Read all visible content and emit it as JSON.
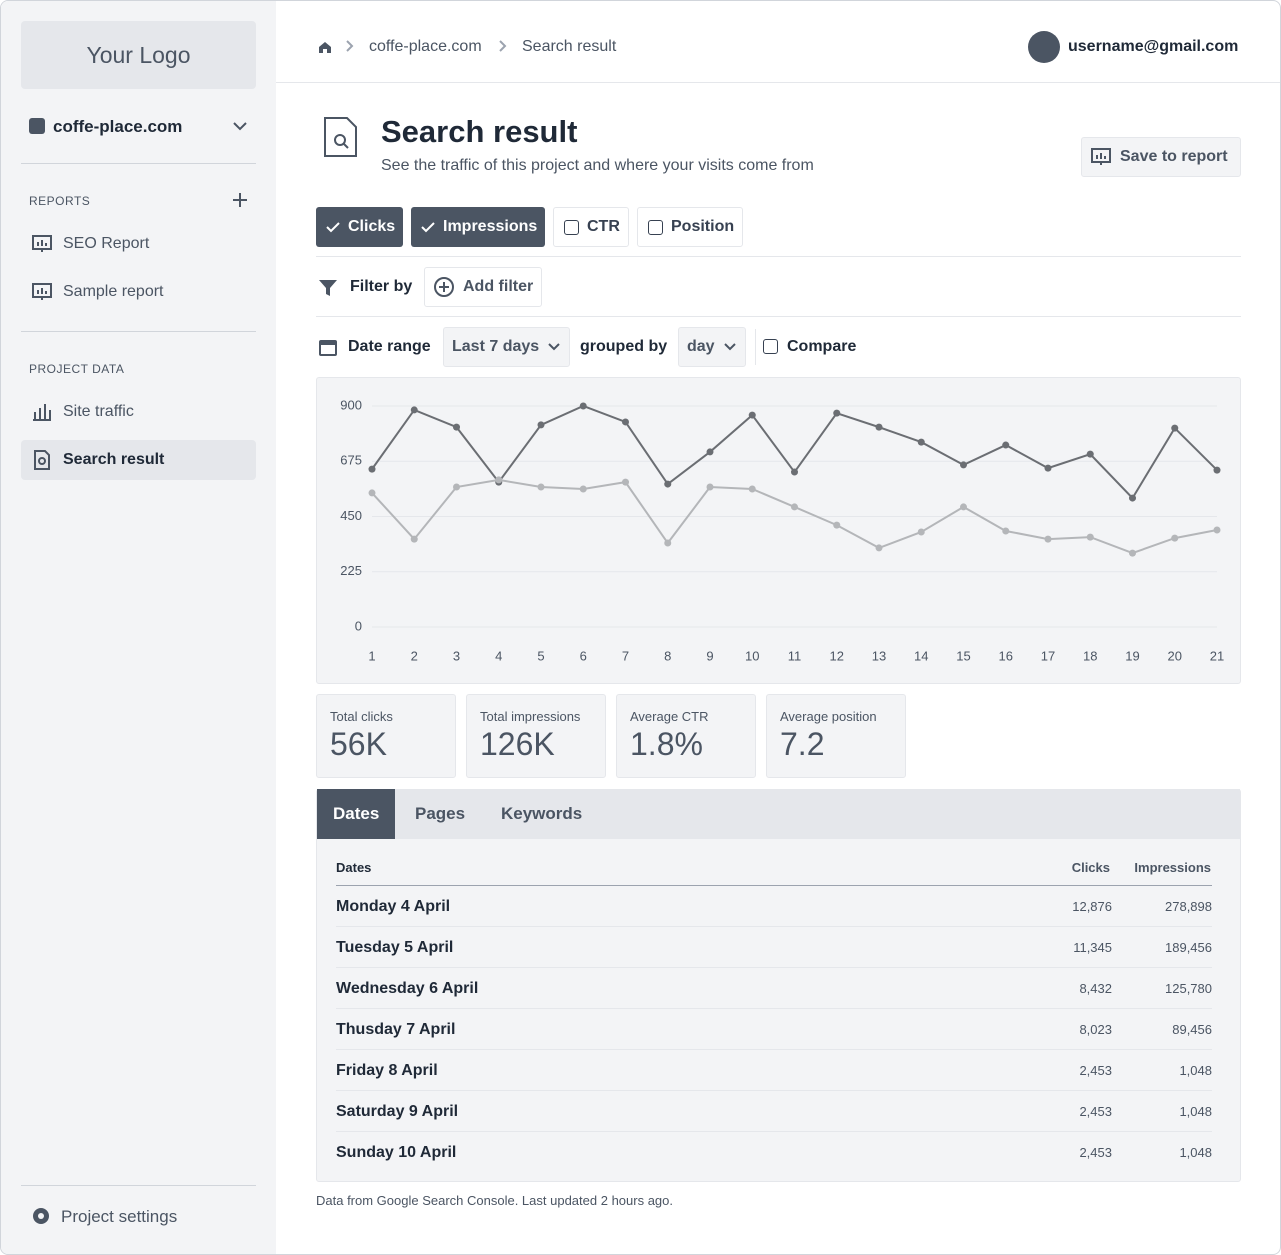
{
  "sidebar": {
    "logo": "Your Logo",
    "project": "coffe-place.com",
    "reports_heading": "REPORTS",
    "reports": [
      "SEO Report",
      "Sample report"
    ],
    "project_data_heading": "PROJECT DATA",
    "project_data": [
      "Site traffic",
      "Search result"
    ],
    "active_item": 1,
    "settings": "Project settings"
  },
  "header": {
    "breadcrumbs": [
      "coffe-place.com",
      "Search result"
    ],
    "user": "username@gmail.com"
  },
  "page": {
    "title": "Search result",
    "subtitle": "See the traffic of this project and where your visits come from",
    "save_button": "Save to report"
  },
  "toggles": [
    {
      "label": "Clicks",
      "checked": true
    },
    {
      "label": "Impressions",
      "checked": true
    },
    {
      "label": "CTR",
      "checked": false
    },
    {
      "label": "Position",
      "checked": false
    }
  ],
  "filter": {
    "label": "Filter by",
    "button": "Add filter"
  },
  "date": {
    "label": "Date range",
    "range": "Last 7 days",
    "grouped_label": "grouped by",
    "grouped": "day",
    "compare": "Compare"
  },
  "chart_data": {
    "type": "line",
    "categories": [
      1,
      2,
      3,
      4,
      5,
      6,
      7,
      8,
      9,
      10,
      11,
      12,
      13,
      14,
      15,
      16,
      17,
      18,
      19,
      20,
      21
    ],
    "series": [
      {
        "color": "#6b6e73",
        "values": [
          643,
          884,
          814,
          590,
          823,
          900,
          835,
          582,
          713,
          863,
          631,
          871,
          814,
          753,
          660,
          741,
          647,
          704,
          525,
          810,
          639
        ]
      },
      {
        "color": "#b4b6b9",
        "values": [
          546,
          358,
          570,
          599,
          570,
          562,
          590,
          342,
          570,
          562,
          489,
          415,
          322,
          387,
          489,
          391,
          358,
          366,
          301,
          362,
          395
        ]
      }
    ],
    "ylim": [
      0,
      900
    ],
    "yticks": [
      0,
      225,
      450,
      675,
      900
    ],
    "grid": true
  },
  "stats": [
    {
      "label": "Total clicks",
      "value": "56K"
    },
    {
      "label": "Total impressions",
      "value": "126K"
    },
    {
      "label": "Average CTR",
      "value": "1.8%"
    },
    {
      "label": "Average position",
      "value": "7.2"
    }
  ],
  "tabs": [
    "Dates",
    "Pages",
    "Keywords"
  ],
  "active_tab": 0,
  "table": {
    "columns": [
      "Dates",
      "Clicks",
      "Impressions"
    ],
    "rows": [
      [
        "Monday 4 April",
        "12,876",
        "278,898"
      ],
      [
        "Tuesday 5 April",
        "11,345",
        "189,456"
      ],
      [
        "Wednesday 6 April",
        "8,432",
        "125,780"
      ],
      [
        "Thusday 7 April",
        "8,023",
        "89,456"
      ],
      [
        "Friday 8 April",
        "2,453",
        "1,048"
      ],
      [
        "Saturday 9 April",
        "2,453",
        "1,048"
      ],
      [
        "Sunday 10 April",
        "2,453",
        "1,048"
      ]
    ]
  },
  "footnote": "Data from Google Search Console. Last updated 2 hours ago."
}
